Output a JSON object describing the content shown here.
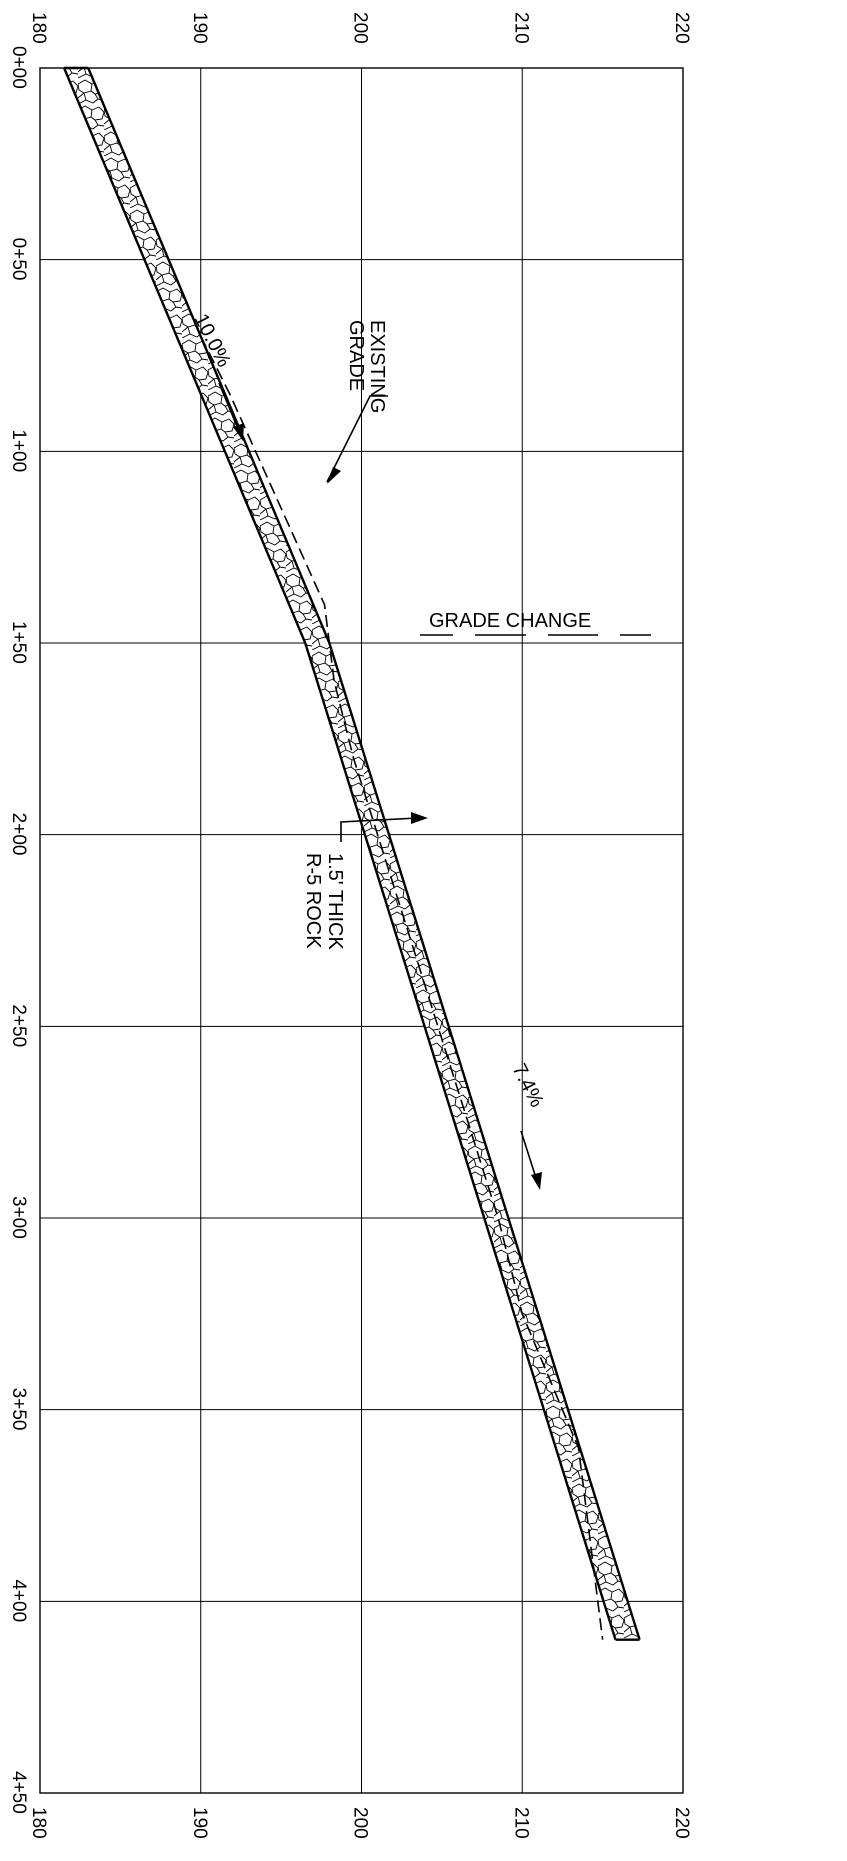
{
  "diagram": {
    "type": "rotated grade profile",
    "elevation_axis": {
      "ticks": [
        "180",
        "190",
        "200",
        "210",
        "220"
      ],
      "range": [
        180,
        220
      ]
    },
    "station_axis": {
      "ticks": [
        "0+00",
        "0+50",
        "1+00",
        "1+50",
        "2+00",
        "2+50",
        "3+00",
        "3+50",
        "4+00",
        "4+50"
      ],
      "range_ft": [
        0,
        450
      ]
    },
    "proposed_grade": {
      "line_style": "solid",
      "points": [
        {
          "station_ft": 0,
          "elevation": 181.5
        },
        {
          "station_ft": 150,
          "elevation": 196.5
        },
        {
          "station_ft": 410,
          "elevation": 215.8
        }
      ],
      "segments": [
        {
          "from_ft": 0,
          "to_ft": 150,
          "slope_label": "10.0%"
        },
        {
          "from_ft": 150,
          "to_ft": 410,
          "slope_label": "7.4%"
        }
      ]
    },
    "rock_layer": {
      "thickness_ft": 1.5,
      "fill": "hatched stone pattern"
    },
    "existing_grade": {
      "line_style": "dashed",
      "points": [
        {
          "station_ft": 70,
          "elevation": 190
        },
        {
          "station_ft": 85,
          "elevation": 191.8
        },
        {
          "station_ft": 140,
          "elevation": 197.7
        },
        {
          "station_ft": 160,
          "elevation": 198.3
        },
        {
          "station_ft": 180,
          "elevation": 199.5
        },
        {
          "station_ft": 300,
          "elevation": 208.5
        },
        {
          "station_ft": 325,
          "elevation": 210
        },
        {
          "station_ft": 360,
          "elevation": 213.5
        },
        {
          "station_ft": 410,
          "elevation": 215
        }
      ]
    },
    "labels": {
      "existing_grade": [
        "EXISTING",
        "GRADE"
      ],
      "grade_change": "GRADE CHANGE",
      "rock": [
        "1.5' THICK",
        "R-5 ROCK"
      ],
      "slope_upper": "10.0%",
      "slope_lower": "7.4%"
    }
  }
}
